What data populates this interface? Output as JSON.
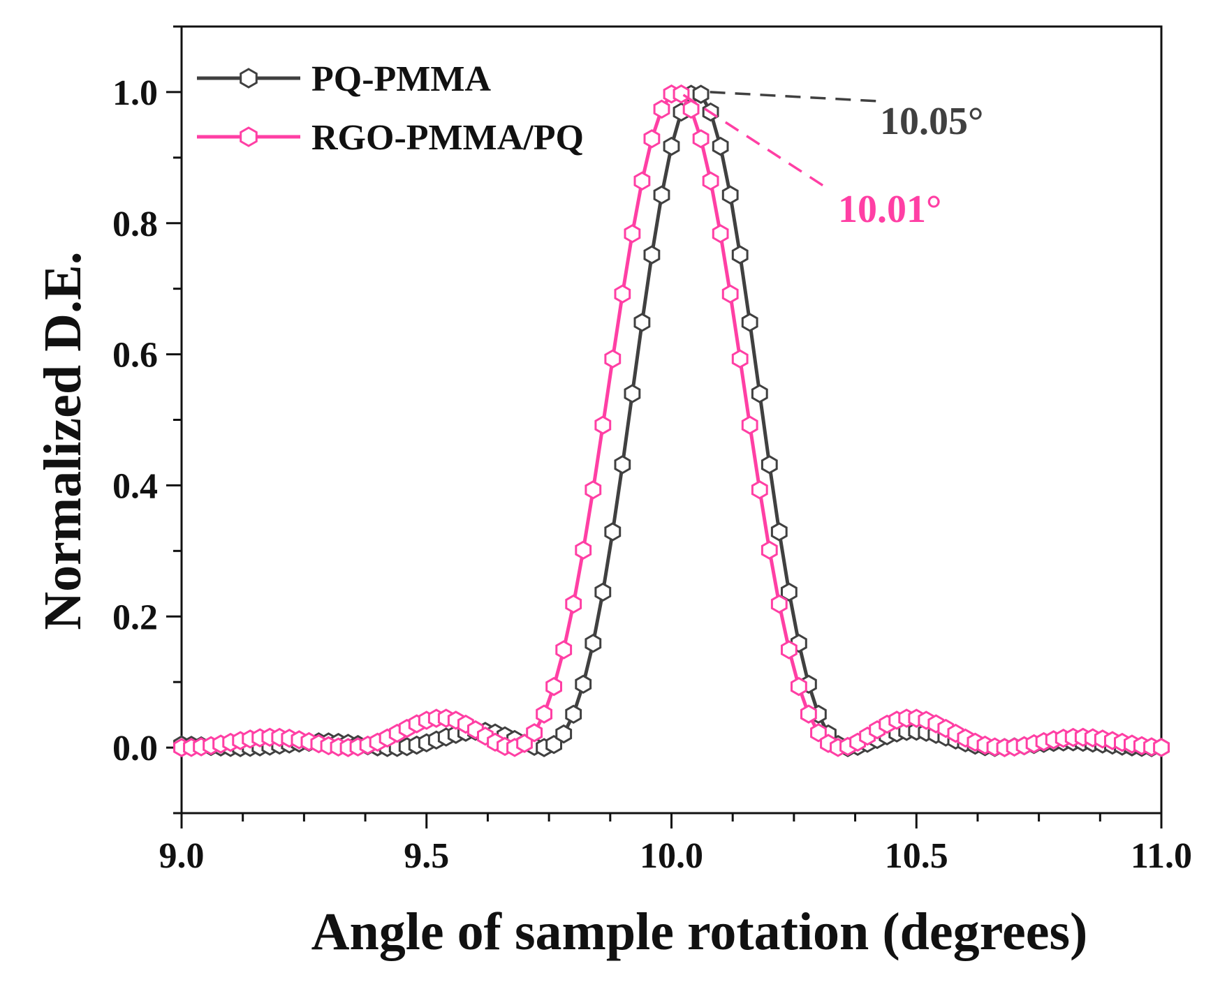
{
  "chart_data": {
    "type": "line",
    "xlabel": "Angle of sample rotation (degrees)",
    "ylabel": "Normalized D.E.",
    "xlim": [
      9.0,
      11.0
    ],
    "ylim": [
      -0.1,
      1.1
    ],
    "xticks": [
      "9.0",
      "9.5",
      "10.0",
      "10.5",
      "11.0"
    ],
    "yticks": [
      "0.0",
      "0.2",
      "0.4",
      "0.6",
      "0.8",
      "1.0"
    ],
    "legend_position": "top-left",
    "series": [
      {
        "name": "PQ-PMMA",
        "color": "#404040",
        "marker": "hexagon-open",
        "peak_x": 10.05,
        "half_width": 0.31,
        "sidelobe": 0.025
      },
      {
        "name": "RGO-PMMA/PQ",
        "color": "#ff3fa4",
        "marker": "hexagon-open",
        "peak_x": 10.01,
        "half_width": 0.335,
        "sidelobe": 0.045
      }
    ],
    "annotations": [
      {
        "text": "10.05°",
        "x": 10.05,
        "y": 1.0,
        "color": "#404040"
      },
      {
        "text": "10.01°",
        "x": 10.01,
        "y": 1.0,
        "color": "#ff3fa4"
      }
    ]
  }
}
